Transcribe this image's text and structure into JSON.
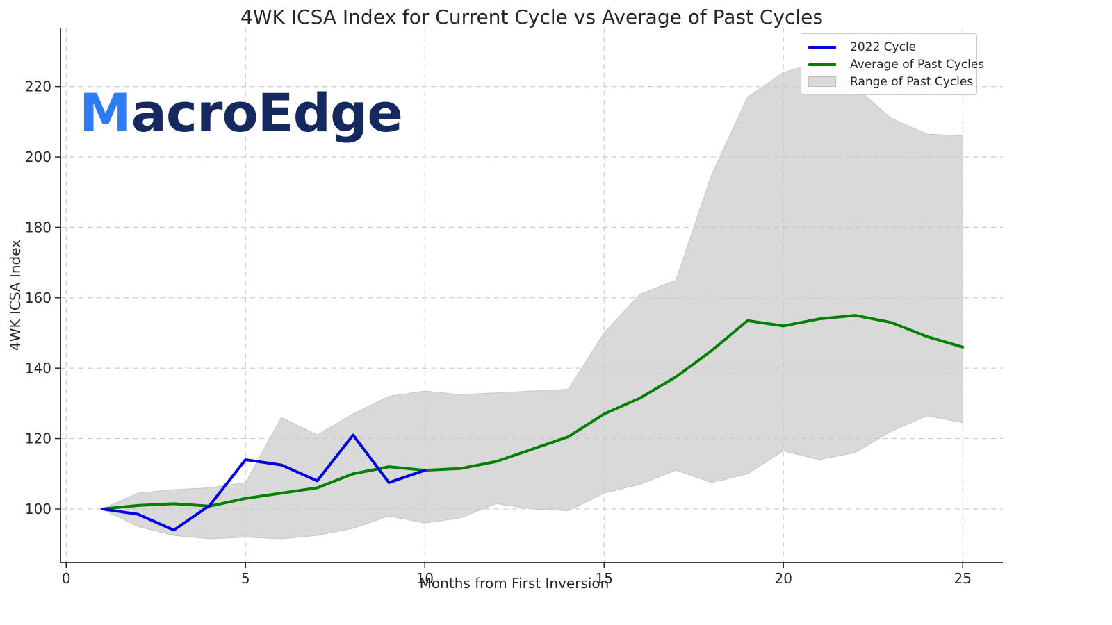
{
  "figure": {
    "title": "4WK ICSA Index for Current Cycle vs Average of Past Cycles",
    "xlabel": "Months from First Inversion",
    "ylabel": "4WK ICSA Index"
  },
  "watermark": {
    "prefix": "M",
    "suffix": "acroEdge",
    "prefix_color": "#2e7bf6",
    "suffix_color": "#15295e"
  },
  "legend": {
    "items": [
      {
        "label": "2022 Cycle",
        "type": "line",
        "color": "#0202e0"
      },
      {
        "label": "Average of Past Cycles",
        "type": "line",
        "color": "#038003"
      },
      {
        "label": "Range of Past Cycles",
        "type": "patch",
        "color": "#d9d9d9",
        "border": "#bdbdbd"
      }
    ]
  },
  "chart_data": {
    "type": "line",
    "title": "4WK ICSA Index for Current Cycle vs Average of Past Cycles",
    "xlabel": "Months from First Inversion",
    "ylabel": "4WK ICSA Index",
    "x": [
      1,
      2,
      3,
      4,
      5,
      6,
      7,
      8,
      9,
      10,
      11,
      12,
      13,
      14,
      15,
      16,
      17,
      18,
      19,
      20,
      21,
      22,
      23,
      24,
      25
    ],
    "series": [
      {
        "name": "2022 Cycle",
        "color": "#0202e0",
        "values": [
          100,
          98.5,
          94,
          101,
          114,
          112.5,
          108,
          121,
          107.5,
          111
        ]
      },
      {
        "name": "Average of Past Cycles",
        "color": "#038003",
        "values": [
          100,
          101,
          101.5,
          100.8,
          103,
          104.5,
          106,
          110,
          112,
          111,
          111.5,
          113.5,
          117,
          120.5,
          127,
          131.5,
          137.5,
          145,
          153.5,
          152,
          154,
          155,
          153,
          149,
          146
        ]
      }
    ],
    "band": {
      "name": "Range of Past Cycles",
      "fill": "#d9d9d9",
      "edge": "#c6c6c6",
      "upper": [
        100,
        104.5,
        105.5,
        106,
        107.5,
        126,
        121,
        127,
        132,
        133.5,
        132.5,
        133,
        133.5,
        134,
        150,
        161,
        165,
        195,
        217,
        224,
        227,
        220,
        211,
        206.5,
        206
      ],
      "lower": [
        100,
        95,
        92.5,
        91.5,
        92,
        91.5,
        92.5,
        94.5,
        98,
        96,
        97.5,
        101.5,
        100,
        99.5,
        104.5,
        107,
        111,
        107.5,
        110,
        116.5,
        114,
        116,
        122,
        126.5,
        124.5
      ]
    },
    "xticks": [
      0,
      5,
      10,
      15,
      20,
      25
    ],
    "yticks": [
      100,
      120,
      140,
      160,
      180,
      200,
      220
    ],
    "xlim": [
      -0.16,
      26.12
    ],
    "ylim": [
      84.8,
      236.7
    ],
    "grid": true,
    "grid_color": "#c8c8c8",
    "spine_color": "#262626",
    "tick_label_color": "#262626",
    "legend_position": "upper right"
  }
}
